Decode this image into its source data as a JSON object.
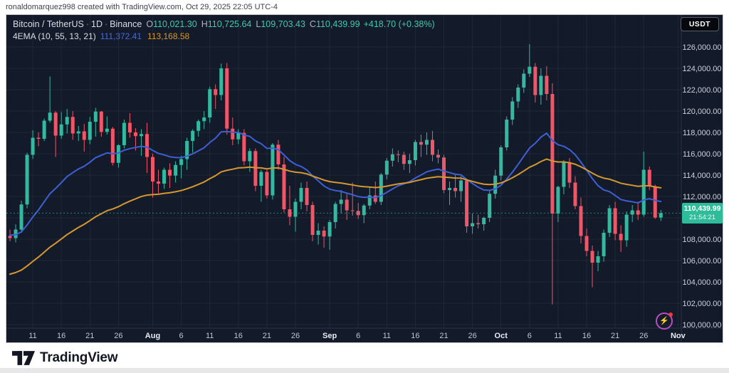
{
  "attribution": "ronaldomarquez998 created with TradingView.com, Oct 29, 2025 22:05 UTC-4",
  "header": {
    "symbol": "Bitcoin / TetherUS",
    "separator": "·",
    "interval": "1D",
    "exchange": "Binance",
    "o_label": "O",
    "o_value": "110,021.30",
    "h_label": "H",
    "h_value": "110,725.64",
    "l_label": "L",
    "l_value": "109,703.43",
    "c_label": "C",
    "c_value": "110,439.99",
    "change": "+418.70 (+0.38%)",
    "indicator_name": "4EMA (10, 55, 13, 21)",
    "indicator_value_fast": "111,372.41",
    "indicator_value_slow": "113,168.58"
  },
  "price_axis": {
    "currency_button": "USDT",
    "values": [
      126000,
      124000,
      122000,
      120000,
      118000,
      116000,
      114000,
      112000,
      110000,
      108000,
      106000,
      104000,
      102000,
      100000
    ],
    "last_price_label": "110,439.99",
    "countdown": "21:54:21"
  },
  "time_axis": {
    "ticks": [
      {
        "label": "11",
        "i": 4
      },
      {
        "label": "16",
        "i": 9
      },
      {
        "label": "21",
        "i": 14
      },
      {
        "label": "26",
        "i": 19
      },
      {
        "label": "Aug",
        "i": 25,
        "major": true
      },
      {
        "label": "6",
        "i": 30
      },
      {
        "label": "11",
        "i": 35
      },
      {
        "label": "16",
        "i": 40
      },
      {
        "label": "21",
        "i": 45
      },
      {
        "label": "26",
        "i": 50
      },
      {
        "label": "Sep",
        "i": 56,
        "major": true
      },
      {
        "label": "6",
        "i": 61
      },
      {
        "label": "11",
        "i": 66
      },
      {
        "label": "16",
        "i": 71
      },
      {
        "label": "21",
        "i": 76
      },
      {
        "label": "26",
        "i": 81
      },
      {
        "label": "Oct",
        "i": 86,
        "major": true
      },
      {
        "label": "6",
        "i": 91
      },
      {
        "label": "11",
        "i": 96
      },
      {
        "label": "16",
        "i": 101
      },
      {
        "label": "21",
        "i": 106
      },
      {
        "label": "26",
        "i": 111
      },
      {
        "label": "Nov",
        "i": 117,
        "major": true
      }
    ]
  },
  "icons": {
    "flash": "⚡"
  },
  "footer": {
    "brand": "TradingView"
  },
  "colors": {
    "background": "#131a29",
    "up": "#34b9a0",
    "down": "#ef5668",
    "ema_fast": "#3f5fd6",
    "ema_slow": "#d59830",
    "badge": "#2ebd9a",
    "grid": "rgba(255,255,255,0.05)",
    "axis_separator": "#2a3145"
  },
  "chart_data": {
    "type": "candlestick",
    "title": "Bitcoin / TetherUS · 1D · Binance",
    "symbol": "BTC/USDT",
    "interval": "1D",
    "start_date": "2025-07-07",
    "ylim": [
      99600,
      129000
    ],
    "grid": true,
    "last_price": 110439.99,
    "emas": [
      {
        "name": "EMA 21",
        "period": 21,
        "seed": 108400,
        "color_key": "ema_fast"
      },
      {
        "name": "EMA 55",
        "period": 55,
        "seed": 104600,
        "color_key": "ema_slow"
      }
    ],
    "candles": [
      [
        108300,
        108900,
        107800,
        108100
      ],
      [
        108100,
        109400,
        107700,
        108900
      ],
      [
        108900,
        111600,
        108600,
        111250
      ],
      [
        111250,
        116100,
        110900,
        115900
      ],
      [
        115900,
        118200,
        115500,
        117500
      ],
      [
        117500,
        118000,
        116700,
        117400
      ],
      [
        117400,
        119300,
        117200,
        119100
      ],
      [
        119100,
        123250,
        118900,
        119850
      ],
      [
        119850,
        120000,
        115700,
        117700
      ],
      [
        117700,
        119900,
        117400,
        118750
      ],
      [
        118750,
        120200,
        117900,
        119450
      ],
      [
        119450,
        120000,
        117300,
        117900
      ],
      [
        117900,
        118600,
        117200,
        118100
      ],
      [
        118100,
        118800,
        116200,
        117300
      ],
      [
        117300,
        119450,
        116900,
        119000
      ],
      [
        119000,
        120300,
        117600,
        119950
      ],
      [
        119950,
        120000,
        117600,
        118050
      ],
      [
        118050,
        119500,
        117800,
        118350
      ],
      [
        118350,
        118500,
        114900,
        115150
      ],
      [
        115150,
        116900,
        114700,
        116800
      ],
      [
        116800,
        119200,
        116500,
        118900
      ],
      [
        118900,
        119800,
        117500,
        118000
      ],
      [
        118000,
        118400,
        116300,
        117650
      ],
      [
        117650,
        118300,
        115800,
        117850
      ],
      [
        117850,
        118900,
        114200,
        115700
      ],
      [
        115700,
        116000,
        111900,
        113400
      ],
      [
        113400,
        114500,
        112300,
        113200
      ],
      [
        113200,
        114700,
        112700,
        114500
      ],
      [
        114500,
        115100,
        112800,
        113950
      ],
      [
        113950,
        115300,
        113300,
        114950
      ],
      [
        114950,
        115800,
        113700,
        115500
      ],
      [
        115500,
        117500,
        114500,
        117200
      ],
      [
        117200,
        118300,
        116100,
        118150
      ],
      [
        118150,
        119200,
        117600,
        119050
      ],
      [
        119050,
        120000,
        118300,
        119400
      ],
      [
        119400,
        122300,
        118900,
        122050
      ],
      [
        122050,
        122500,
        120200,
        121500
      ],
      [
        121500,
        124450,
        121000,
        124000
      ],
      [
        124000,
        124500,
        117800,
        118350
      ],
      [
        118350,
        119400,
        116800,
        117350
      ],
      [
        117350,
        118300,
        116900,
        117950
      ],
      [
        117950,
        118300,
        114900,
        115300
      ],
      [
        115300,
        116500,
        114300,
        116250
      ],
      [
        116250,
        116500,
        112500,
        113000
      ],
      [
        113000,
        114500,
        111500,
        114300
      ],
      [
        114300,
        114500,
        111800,
        112100
      ],
      [
        112100,
        117000,
        111700,
        116850
      ],
      [
        116850,
        117300,
        114500,
        115000
      ],
      [
        115000,
        115700,
        110500,
        110800
      ],
      [
        110800,
        113000,
        109300,
        110100
      ],
      [
        110100,
        111800,
        108700,
        111500
      ],
      [
        111500,
        113300,
        110800,
        112800
      ],
      [
        112800,
        113400,
        110600,
        111200
      ],
      [
        111200,
        111500,
        107800,
        108400
      ],
      [
        108400,
        109500,
        107500,
        108800
      ],
      [
        108800,
        109200,
        107200,
        108250
      ],
      [
        108250,
        109800,
        107000,
        109600
      ],
      [
        109600,
        111500,
        109000,
        111300
      ],
      [
        111300,
        112600,
        110400,
        111700
      ],
      [
        111700,
        112300,
        109800,
        110700
      ],
      [
        110700,
        113300,
        110200,
        110650
      ],
      [
        110650,
        111400,
        109900,
        110250
      ],
      [
        110250,
        111300,
        109500,
        111150
      ],
      [
        111150,
        112900,
        110800,
        112100
      ],
      [
        112100,
        113400,
        111300,
        111500
      ],
      [
        111500,
        114200,
        111200,
        114050
      ],
      [
        114050,
        115600,
        113600,
        115350
      ],
      [
        115350,
        116500,
        114800,
        115950
      ],
      [
        115950,
        116300,
        115200,
        115900
      ],
      [
        115900,
        116200,
        114500,
        115050
      ],
      [
        115050,
        116000,
        114200,
        115400
      ],
      [
        115400,
        117300,
        114900,
        117100
      ],
      [
        117100,
        117800,
        115700,
        116850
      ],
      [
        116850,
        118000,
        115900,
        117300
      ],
      [
        117300,
        118150,
        115300,
        115900
      ],
      [
        115900,
        116400,
        115100,
        115650
      ],
      [
        115650,
        115900,
        112300,
        112600
      ],
      [
        112600,
        113400,
        111200,
        112800
      ],
      [
        112800,
        114000,
        111900,
        112500
      ],
      [
        112500,
        113900,
        111500,
        113500
      ],
      [
        113500,
        113600,
        108600,
        109200
      ],
      [
        109200,
        110400,
        108500,
        109500
      ],
      [
        109500,
        110300,
        109000,
        109400
      ],
      [
        109400,
        110100,
        108800,
        110000
      ],
      [
        110000,
        112500,
        109600,
        112250
      ],
      [
        112250,
        114500,
        111800,
        113950
      ],
      [
        113950,
        116800,
        113500,
        116600
      ],
      [
        116600,
        119500,
        116300,
        119200
      ],
      [
        119200,
        121300,
        118700,
        120900
      ],
      [
        120900,
        122500,
        120300,
        122200
      ],
      [
        122200,
        123900,
        121700,
        123500
      ],
      [
        123500,
        126270,
        123200,
        124150
      ],
      [
        124150,
        124500,
        120800,
        121500
      ],
      [
        121500,
        124000,
        120600,
        123300
      ],
      [
        123300,
        124200,
        121000,
        121600
      ],
      [
        121600,
        122600,
        101900,
        110400
      ],
      [
        110400,
        113000,
        109600,
        112900
      ],
      [
        112900,
        115400,
        112200,
        115200
      ],
      [
        115200,
        115600,
        112800,
        113300
      ],
      [
        113300,
        113900,
        110800,
        111100
      ],
      [
        111100,
        111900,
        107600,
        108300
      ],
      [
        108300,
        109000,
        106400,
        106900
      ],
      [
        106900,
        107400,
        103500,
        105800
      ],
      [
        105800,
        106900,
        105000,
        106400
      ],
      [
        106400,
        108900,
        105900,
        108600
      ],
      [
        108600,
        111200,
        108200,
        110900
      ],
      [
        110900,
        111500,
        107900,
        108500
      ],
      [
        108500,
        109300,
        106800,
        107900
      ],
      [
        107900,
        110600,
        107300,
        110300
      ],
      [
        110300,
        111200,
        109600,
        110700
      ],
      [
        110700,
        111500,
        109800,
        110300
      ],
      [
        110300,
        116200,
        110100,
        114500
      ],
      [
        114500,
        114800,
        112600,
        112950
      ],
      [
        112950,
        113100,
        109900,
        110021.3
      ],
      [
        110021.3,
        110725.64,
        109703.43,
        110439.99
      ]
    ]
  }
}
